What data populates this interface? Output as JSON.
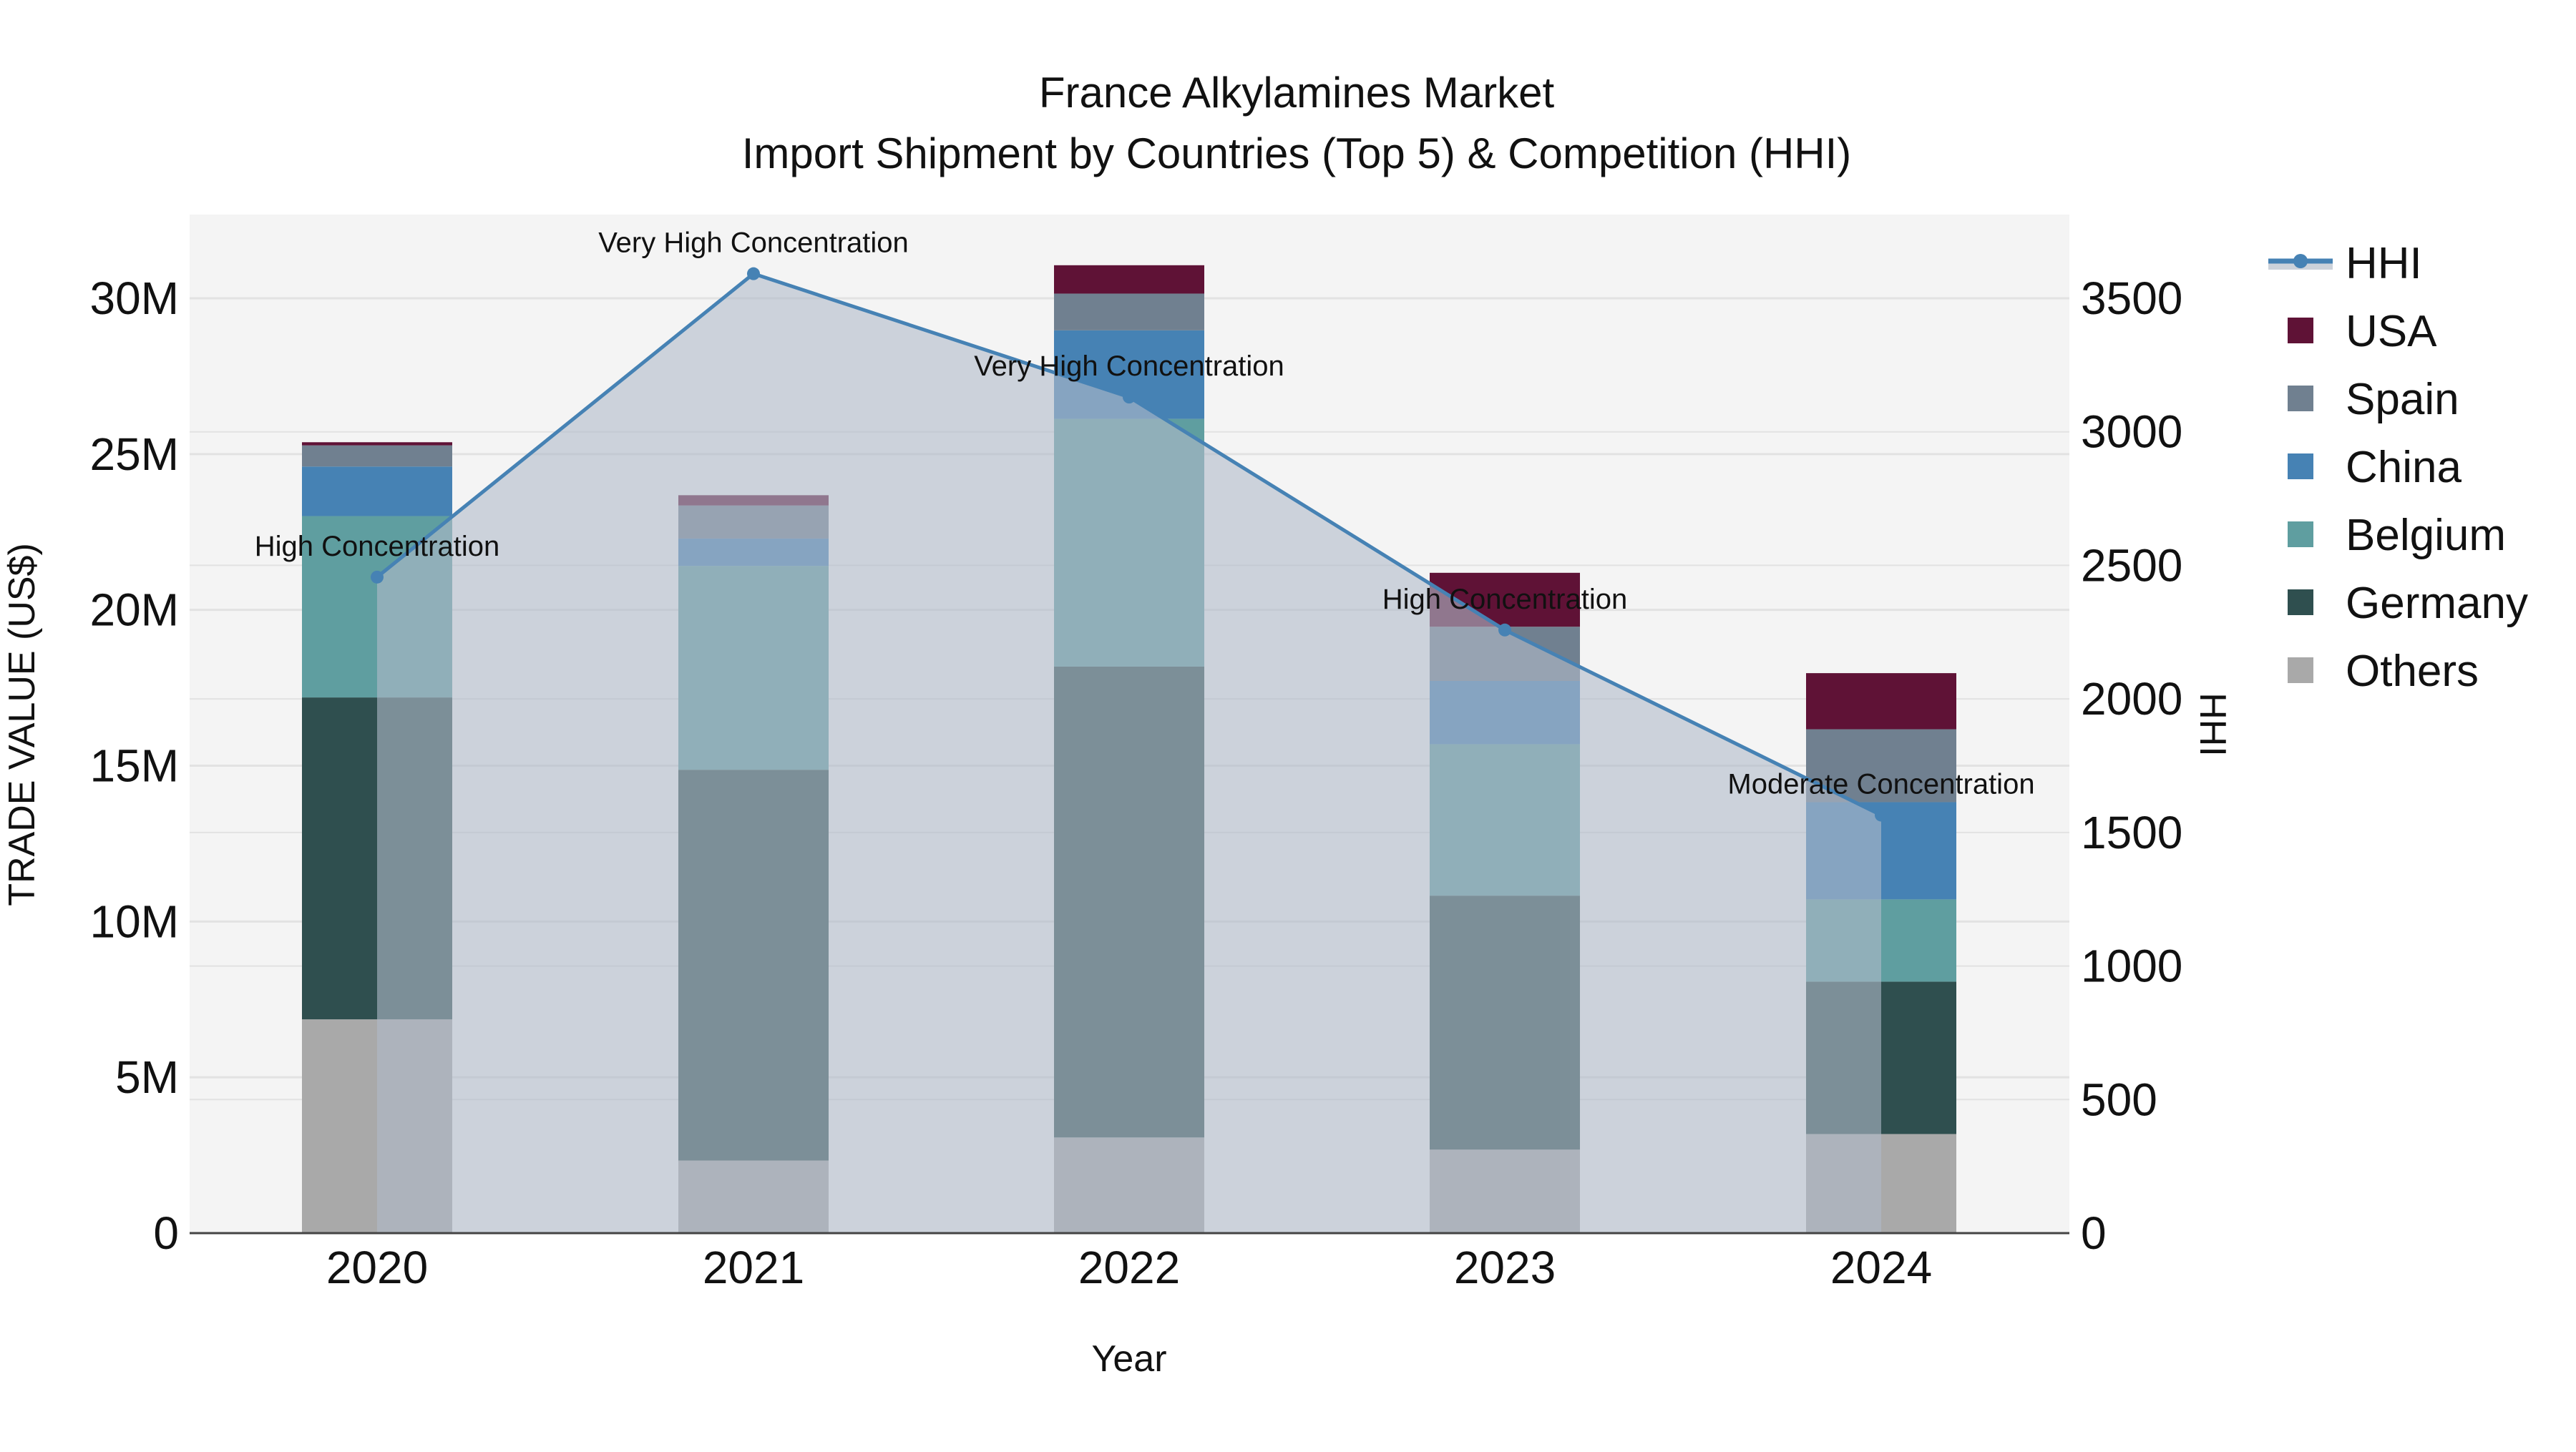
{
  "title": {
    "line1": "France Alkylamines Market",
    "line2": "Import Shipment by Countries (Top 5) & Competition (HHI)"
  },
  "axes": {
    "x_title": "Year",
    "y_left_title": "TRADE VALUE (US$)",
    "y_right_title": "HHI",
    "y_left_ticks": [
      "0",
      "5M",
      "10M",
      "15M",
      "20M",
      "25M",
      "30M"
    ],
    "y_right_ticks": [
      "0",
      "500",
      "1000",
      "1500",
      "2000",
      "2500",
      "3000",
      "3500"
    ]
  },
  "legend": {
    "items": [
      {
        "label": "HHI",
        "type": "line",
        "color": "#4682b4"
      },
      {
        "label": "USA",
        "type": "bar",
        "color": "#5f1236"
      },
      {
        "label": "Spain",
        "type": "bar",
        "color": "#708090"
      },
      {
        "label": "China",
        "type": "bar",
        "color": "#4682b4"
      },
      {
        "label": "Belgium",
        "type": "bar",
        "color": "#5f9ea0"
      },
      {
        "label": "Germany",
        "type": "bar",
        "color": "#2f4f4f"
      },
      {
        "label": "Others",
        "type": "bar",
        "color": "#a9a9a9"
      }
    ]
  },
  "colors": {
    "plot_bg": "#f4f4f4",
    "grid": "#e2e2e2",
    "hhi_line": "#4682b4",
    "hhi_fill": "rgba(176,186,202,0.6)",
    "axis_line": "#444444"
  },
  "chart_data": {
    "type": "bar",
    "stacked": true,
    "title": "France Alkylamines Market — Import Shipment by Countries (Top 5) & Competition (HHI)",
    "xlabel": "Year",
    "ylabel": "TRADE VALUE (US$)",
    "y2label": "HHI",
    "categories": [
      "2020",
      "2021",
      "2022",
      "2023",
      "2024"
    ],
    "ylim": [
      0,
      32700000
    ],
    "y2lim": [
      0,
      3815
    ],
    "grid": true,
    "legend_position": "right",
    "series": [
      {
        "name": "Others",
        "color": "#a9a9a9",
        "values": [
          6860000,
          2330000,
          3070000,
          2680000,
          3180000
        ]
      },
      {
        "name": "Germany",
        "color": "#2f4f4f",
        "values": [
          10330000,
          12540000,
          15110000,
          8150000,
          4890000
        ]
      },
      {
        "name": "Belgium",
        "color": "#5f9ea0",
        "values": [
          5820000,
          6540000,
          7950000,
          4860000,
          2640000
        ]
      },
      {
        "name": "China",
        "color": "#4682b4",
        "values": [
          1590000,
          880000,
          2840000,
          2030000,
          3120000
        ]
      },
      {
        "name": "Spain",
        "color": "#708090",
        "values": [
          680000,
          1060000,
          1180000,
          1740000,
          2340000
        ]
      },
      {
        "name": "USA",
        "color": "#5f1236",
        "values": [
          100000,
          330000,
          910000,
          1730000,
          1800000
        ]
      }
    ],
    "line_series": {
      "name": "HHI",
      "axis": "right",
      "type": "area+line",
      "color": "#4682b4",
      "values": [
        2456,
        3592,
        3130,
        2258,
        1565
      ],
      "annotations": [
        "High Concentration",
        "Very High Concentration",
        "Very High Concentration",
        "High Concentration",
        "Moderate Concentration"
      ]
    }
  }
}
